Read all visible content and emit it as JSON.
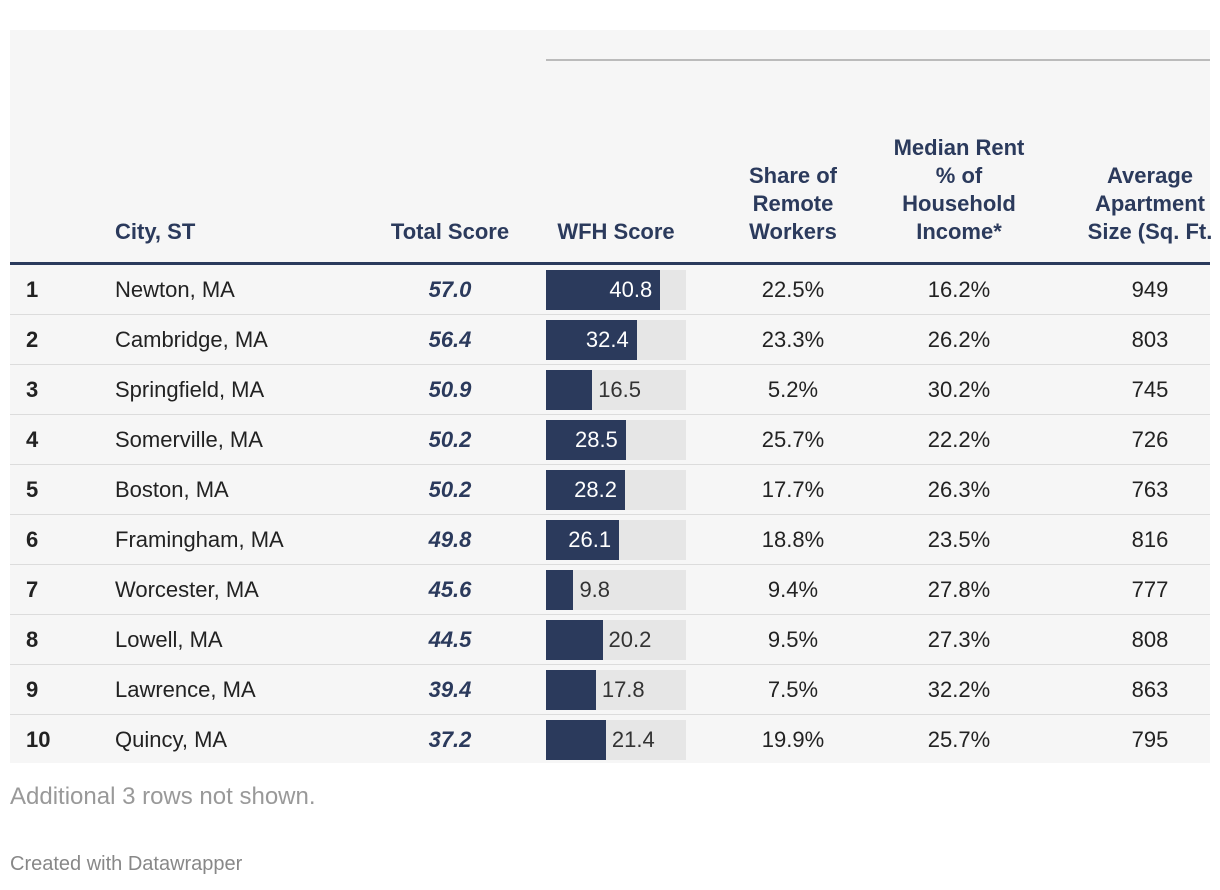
{
  "headers": {
    "rank": "",
    "city": "City, ST",
    "total": "Total Score",
    "wfh": "WFH Score",
    "remote": "Share of Remote Workers",
    "rent": "Median Rent % of Household Income*",
    "size": "Average Apartment Size (Sq. Ft."
  },
  "wfh_bar_range": [
    0,
    50
  ],
  "rows": [
    {
      "rank": 1,
      "city": "Newton, MA",
      "total": "57.0",
      "wfh": 40.8,
      "remote": "22.5%",
      "rent": "16.2%",
      "size": 949
    },
    {
      "rank": 2,
      "city": "Cambridge, MA",
      "total": "56.4",
      "wfh": 32.4,
      "remote": "23.3%",
      "rent": "26.2%",
      "size": 803
    },
    {
      "rank": 3,
      "city": "Springfield, MA",
      "total": "50.9",
      "wfh": 16.5,
      "remote": "5.2%",
      "rent": "30.2%",
      "size": 745
    },
    {
      "rank": 4,
      "city": "Somerville, MA",
      "total": "50.2",
      "wfh": 28.5,
      "remote": "25.7%",
      "rent": "22.2%",
      "size": 726
    },
    {
      "rank": 5,
      "city": "Boston, MA",
      "total": "50.2",
      "wfh": 28.2,
      "remote": "17.7%",
      "rent": "26.3%",
      "size": 763
    },
    {
      "rank": 6,
      "city": "Framingham, MA",
      "total": "49.8",
      "wfh": 26.1,
      "remote": "18.8%",
      "rent": "23.5%",
      "size": 816
    },
    {
      "rank": 7,
      "city": "Worcester, MA",
      "total": "45.6",
      "wfh": 9.8,
      "remote": "9.4%",
      "rent": "27.8%",
      "size": 777
    },
    {
      "rank": 8,
      "city": "Lowell, MA",
      "total": "44.5",
      "wfh": 20.2,
      "remote": "9.5%",
      "rent": "27.3%",
      "size": 808
    },
    {
      "rank": 9,
      "city": "Lawrence, MA",
      "total": "39.4",
      "wfh": 17.8,
      "remote": "7.5%",
      "rent": "32.2%",
      "size": 863
    },
    {
      "rank": 10,
      "city": "Quincy, MA",
      "total": "37.2",
      "wfh": 21.4,
      "remote": "19.9%",
      "rent": "25.7%",
      "size": 795
    }
  ],
  "notes": "Additional 3 rows not shown.",
  "credit": "Created with Datawrapper"
}
